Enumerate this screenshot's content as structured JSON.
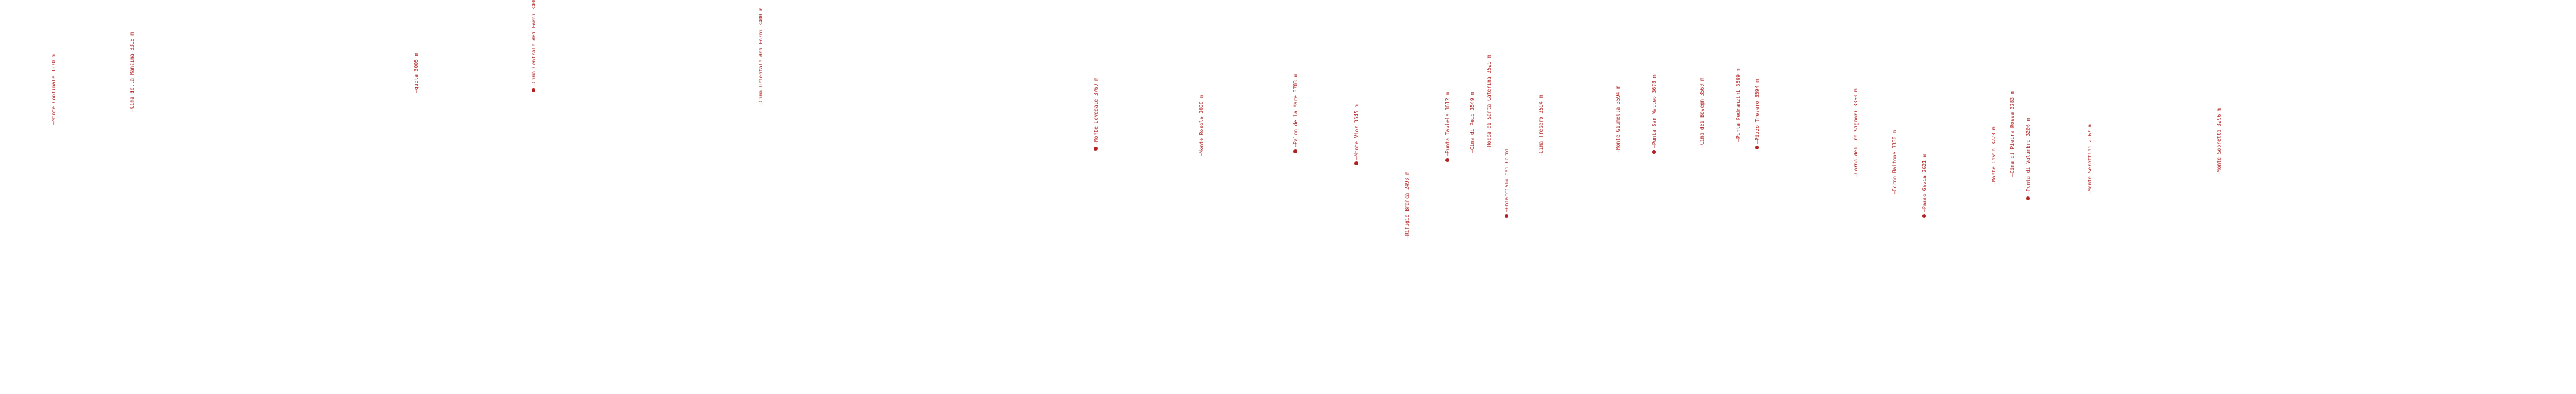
{
  "map": {
    "marker_color": "#b22222",
    "label_color": "#b22222",
    "peaks": [
      {
        "name": "Monte Confinale",
        "elevation": "3370 m"
      },
      {
        "name": "Cima della Manzina",
        "elevation": "3318 m"
      },
      {
        "name": "quota",
        "elevation": "3005 m"
      },
      {
        "name": "Cima Centrale dei Forni",
        "elevation": "3400 m"
      },
      {
        "name": "Cima Orientale dei Forni",
        "elevation": "3400 m"
      },
      {
        "name": "Monte Cevedale",
        "elevation": "3769 m"
      },
      {
        "name": "Monte Rosole",
        "elevation": "3036 m"
      },
      {
        "name": "Palon de la Mare",
        "elevation": "3703 m"
      },
      {
        "name": "Monte Vioz",
        "elevation": "3645 m"
      },
      {
        "name": "Rifugio Branca",
        "elevation": "2493 m"
      },
      {
        "name": "Punta Taviela",
        "elevation": "3612 m"
      },
      {
        "name": "Cima di Peio",
        "elevation": "3549 m"
      },
      {
        "name": "Rocca di Santa Caterina",
        "elevation": "3529 m"
      },
      {
        "name": "Ghiacciaio dei Forni",
        "elevation": ""
      },
      {
        "name": "Cima Tresero",
        "elevation": "3594 m"
      },
      {
        "name": "Monte Giumella",
        "elevation": "3594 m"
      },
      {
        "name": "Punta San Matteo",
        "elevation": "3678 m"
      },
      {
        "name": "Cima dei Bovegn",
        "elevation": "3560 m"
      },
      {
        "name": "Punta Pedranzini",
        "elevation": "3599 m"
      },
      {
        "name": "Pizzo Tresero",
        "elevation": "3594 m"
      },
      {
        "name": "Corno dei Tre Signori",
        "elevation": "3360 m"
      },
      {
        "name": "Corno Baitone",
        "elevation": "3330 m"
      },
      {
        "name": "Passo Gavia",
        "elevation": "2621 m"
      },
      {
        "name": "Monte Gavia",
        "elevation": "3223 m"
      },
      {
        "name": "Cima di Pietra Rossa",
        "elevation": "3283 m"
      },
      {
        "name": "Punta di Valumbra",
        "elevation": "3206 m"
      },
      {
        "name": "Monte Serottini",
        "elevation": "2967 m"
      },
      {
        "name": "Monte Sobretta",
        "elevation": "3296 m"
      }
    ]
  }
}
